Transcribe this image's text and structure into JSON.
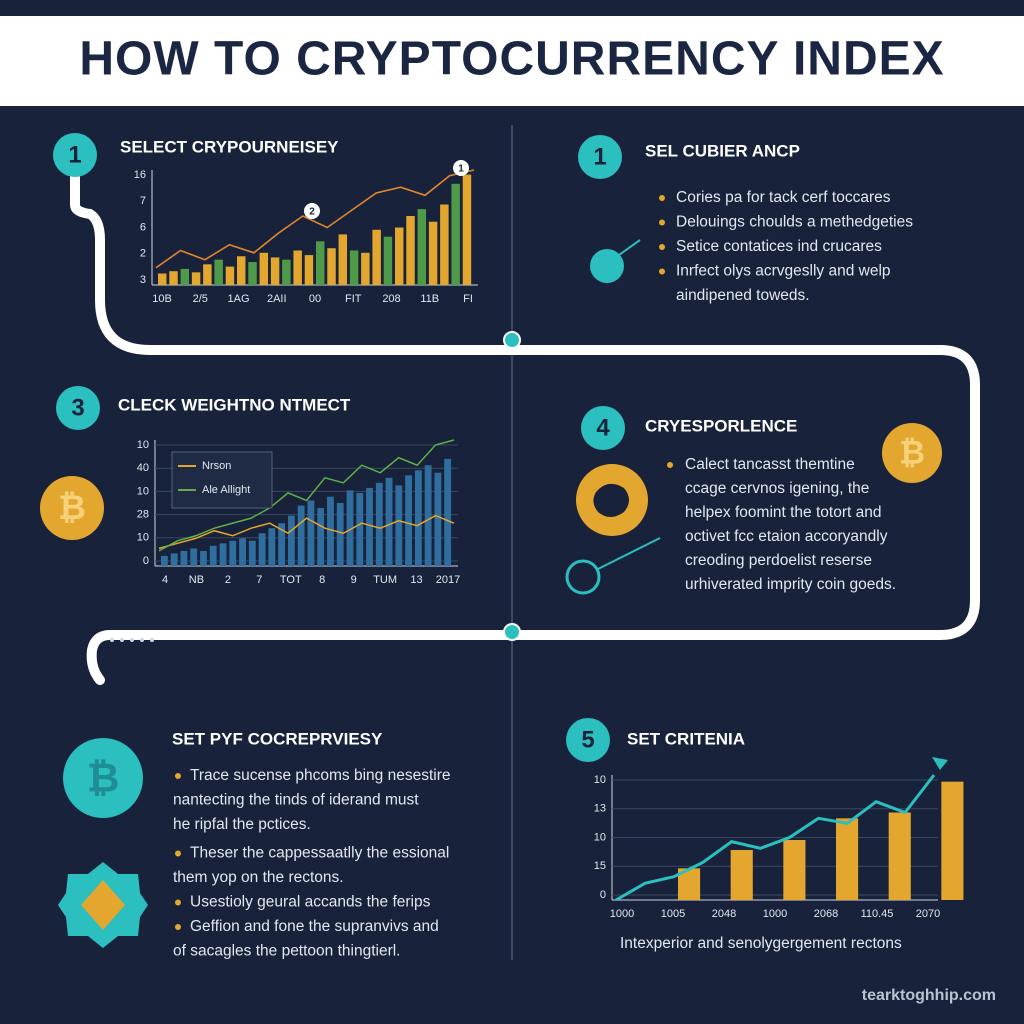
{
  "title": "HOW TO CRYPTOCURRENCY INDEX",
  "footer": "tearktoghhip.com",
  "panel1": {
    "number": "1",
    "heading": "SELECT CRYPOURNEISEY",
    "markers": [
      "2",
      "1"
    ],
    "chart": {
      "y_labels": [
        "16",
        "7",
        "6",
        "2",
        "3"
      ],
      "x_labels": [
        "10B",
        "2/5",
        "1AG",
        "2AII",
        "00",
        "FIT",
        "208",
        "11B",
        "FI"
      ],
      "ylim": [
        0,
        100
      ],
      "bar_colors": [
        "#e3a72f",
        "#4f9a48"
      ],
      "line_color": "#e0862e",
      "bars": [
        10,
        12,
        14,
        11,
        18,
        22,
        16,
        25,
        20,
        28,
        24,
        22,
        30,
        26,
        38,
        32,
        44,
        30,
        28,
        48,
        42,
        50,
        60,
        66,
        55,
        70,
        88,
        96
      ],
      "line": [
        15,
        30,
        22,
        35,
        28,
        45,
        60,
        50,
        65,
        80,
        85,
        78,
        95,
        100
      ]
    }
  },
  "panel2": {
    "number": "1",
    "heading": "SEL CUBIER ANCP",
    "bullets": [
      "Cories pa for tack cerf toccares",
      "Delouings choulds a methedgeties",
      "Setice contatices ind crucares",
      "Inrfect olys acrvgeslly and welp"
    ],
    "continuation": "aindipened toweds."
  },
  "panel3": {
    "number": "3",
    "heading": "CLECK WEIGHTNO NTMECT",
    "chart": {
      "y_labels": [
        "10",
        "40",
        "10",
        "28",
        "10",
        "0"
      ],
      "x_labels": [
        "4",
        "NB",
        "2",
        "7",
        "TOT",
        "8",
        "9",
        "TUM",
        "13",
        "2017"
      ],
      "ylim": [
        0,
        100
      ],
      "bar_color": "#2f6e9e",
      "bars": [
        8,
        10,
        12,
        14,
        12,
        16,
        18,
        20,
        22,
        20,
        26,
        30,
        34,
        40,
        48,
        52,
        46,
        55,
        50,
        60,
        58,
        62,
        66,
        70,
        64,
        72,
        76,
        80,
        74,
        85
      ],
      "series": [
        {
          "name": "Nrson",
          "color": "#e3a72f",
          "values": [
            14,
            18,
            22,
            28,
            24,
            30,
            34,
            26,
            38,
            30,
            26,
            34,
            30,
            36,
            32,
            40,
            34
          ]
        },
        {
          "name": "Ale Allight",
          "color": "#5fb04a",
          "values": [
            12,
            20,
            24,
            30,
            34,
            38,
            46,
            58,
            52,
            70,
            66,
            80,
            74,
            86,
            80,
            96,
            100
          ]
        }
      ]
    }
  },
  "panel4": {
    "number": "4",
    "heading": "CRYESPORLENCE",
    "lines": [
      "Calect tancasst themtine",
      "ccage cervnos igening, the",
      "helpex foomint the totort and",
      "octivet fcc etaion accoryandly",
      "creoding perdoelist reserse",
      "urhiverated imprity coin goeds."
    ]
  },
  "panel5": {
    "heading": "SET PYF COCREPRVIESY",
    "bullets": [
      [
        "Trace sucense phcoms bing nesestire",
        "nantecting the tinds of iderand must",
        "he ripfal the pctices."
      ],
      [
        "Theser the cappessaatlly the essional",
        "them yop on the rectons."
      ],
      [
        "Usestioly geural accands the ferips"
      ],
      [
        "Geffion and fone the supranvivs and",
        "of sacagles the pettoon thingtierl."
      ]
    ]
  },
  "panel6": {
    "number": "5",
    "heading": "SET CRITENIA",
    "chart": {
      "y_labels": [
        "10",
        "13",
        "10",
        "15",
        "0"
      ],
      "x_labels": [
        "1000",
        "1005",
        "2048",
        "1000",
        "2068",
        "110.45",
        "2070"
      ],
      "ylim": [
        0,
        150
      ],
      "bar_color": "#e3a72f",
      "line_color": "#2bbfc0",
      "bars": [
        38,
        60,
        72,
        98,
        105,
        142
      ],
      "line": [
        0,
        20,
        28,
        45,
        70,
        62,
        75,
        98,
        92,
        118,
        105,
        150
      ]
    },
    "caption": "Intexperior and senolygergement rectons"
  }
}
